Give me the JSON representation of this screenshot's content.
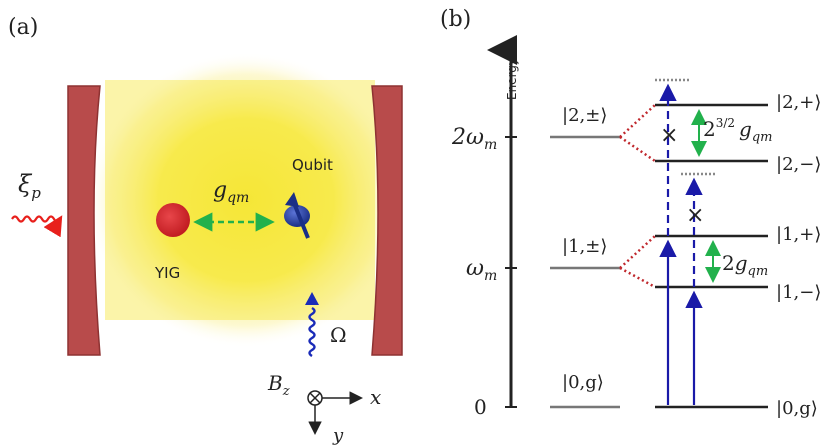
{
  "panel_a": {
    "label": "(a)",
    "yig_label": "YIG",
    "qubit_label": "Qubit",
    "coupling_label": "g",
    "coupling_sub": "qm",
    "drive_label": "ξ",
    "drive_sub": "p",
    "omega_label": "Ω",
    "field_label": "B",
    "field_sub": "z",
    "x_axis_label": "x",
    "y_axis_label": "y",
    "colors": {
      "mirror": "#b84b4b",
      "glow": "#f7ea3a",
      "yig": "#d4252a",
      "qubit": "#1f3d9e",
      "coupling_arrow": "#22b14c",
      "drive": "#e8201c",
      "omega_drive": "#1a2bb8"
    }
  },
  "panel_b": {
    "label": "(b)",
    "energy_axis_label": "Energy",
    "energy_ticks": [
      {
        "label": "0"
      },
      {
        "label": "ω",
        "sub": "m"
      },
      {
        "label": "2ω",
        "sub": "m"
      }
    ],
    "bare_states": [
      "|0,g⟩",
      "|1,±⟩",
      "|2,±⟩"
    ],
    "dressed_states": [
      "|0,g⟩",
      "|1,−⟩",
      "|1,+⟩",
      "|2,−⟩",
      "|2,+⟩"
    ],
    "splitting_1": {
      "prefix": "2",
      "g": "g",
      "sub": "qm"
    },
    "splitting_2": {
      "prefix": "2",
      "sup": "3/2",
      "g": "g",
      "sub": "qm"
    },
    "blocked_mark": "×",
    "colors": {
      "levels": "#222222",
      "bare_levels": "#777777",
      "splitting_lines": "#c0282d",
      "transitions": "#1a1aa8",
      "splitting_arrow": "#22b14c"
    }
  }
}
